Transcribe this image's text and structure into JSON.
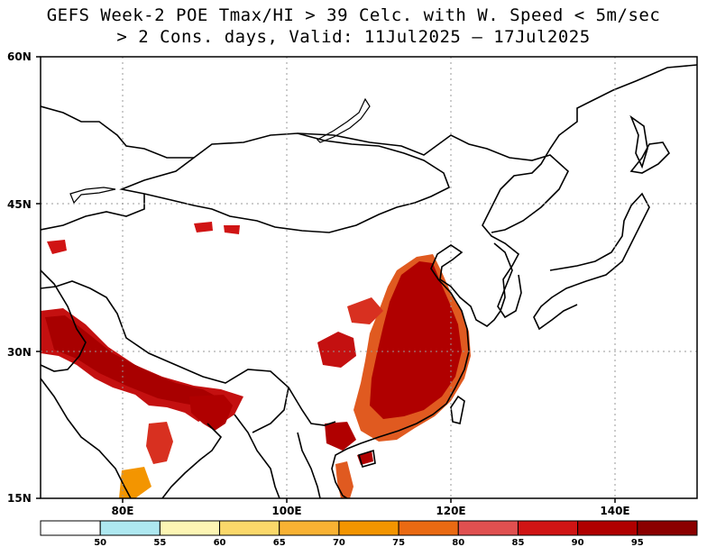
{
  "title": {
    "line1": "GEFS Week-2 POE Tmax/HI > 39 Celc. with W. Speed < 5m/sec",
    "line2": "> 2 Cons. days, Valid: 11Jul2025 – 17Jul2025"
  },
  "map": {
    "lat_labels": [
      "60N",
      "45N",
      "30N",
      "15N"
    ],
    "lon_labels": [
      "80E",
      "100E",
      "120E",
      "140E"
    ],
    "grid": true,
    "lon_range": [
      70,
      150
    ],
    "lat_range": [
      15,
      60
    ]
  },
  "colorbar": {
    "labels": [
      "50",
      "55",
      "60",
      "65",
      "70",
      "75",
      "80",
      "85",
      "90",
      "95"
    ],
    "colors": [
      "#ffffff",
      "#aee8f0",
      "#fdf5b4",
      "#fbd86a",
      "#f9b233",
      "#f39500",
      "#ea6a12",
      "#e05050",
      "#d01414",
      "#b00000",
      "#8b0000"
    ]
  }
}
